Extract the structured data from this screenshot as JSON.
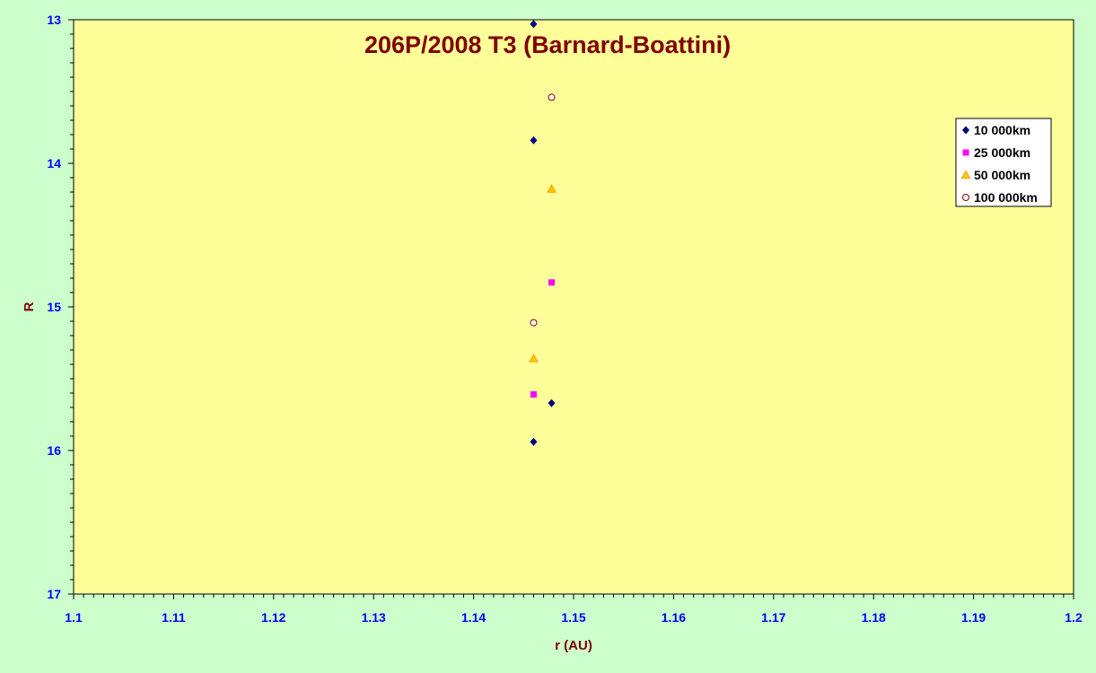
{
  "chart_data": {
    "type": "scatter",
    "title": "206P/2008 T3 (Barnard-Boattini)",
    "xlabel": "r (AU)",
    "ylabel": "R",
    "xlim": [
      1.1,
      1.2
    ],
    "ylim": [
      13,
      17
    ],
    "y_reversed": true,
    "x_ticks": [
      "1.1",
      "1.11",
      "1.12",
      "1.13",
      "1.14",
      "1.15",
      "1.16",
      "1.17",
      "1.18",
      "1.19",
      "1.2"
    ],
    "y_ticks": [
      "13",
      "14",
      "15",
      "16",
      "17"
    ],
    "grid": false,
    "legend_position": "top-right",
    "series": [
      {
        "name": "10 000km",
        "marker": "diamond",
        "color": "#000080",
        "points": [
          [
            1.146,
            13.03
          ],
          [
            1.146,
            13.84
          ],
          [
            1.1478,
            15.67
          ],
          [
            1.146,
            15.94
          ]
        ]
      },
      {
        "name": "25 000km",
        "marker": "square",
        "color": "#ff00ff",
        "points": [
          [
            1.1478,
            14.83
          ],
          [
            1.146,
            15.61
          ]
        ]
      },
      {
        "name": "50 000km",
        "marker": "triangle",
        "color": "#ff9900",
        "points": [
          [
            1.1478,
            14.18
          ],
          [
            1.146,
            15.36
          ]
        ]
      },
      {
        "name": "100 000km",
        "marker": "circle",
        "color": "#800000",
        "points": [
          [
            1.1478,
            13.54
          ],
          [
            1.146,
            15.11
          ]
        ]
      }
    ]
  }
}
